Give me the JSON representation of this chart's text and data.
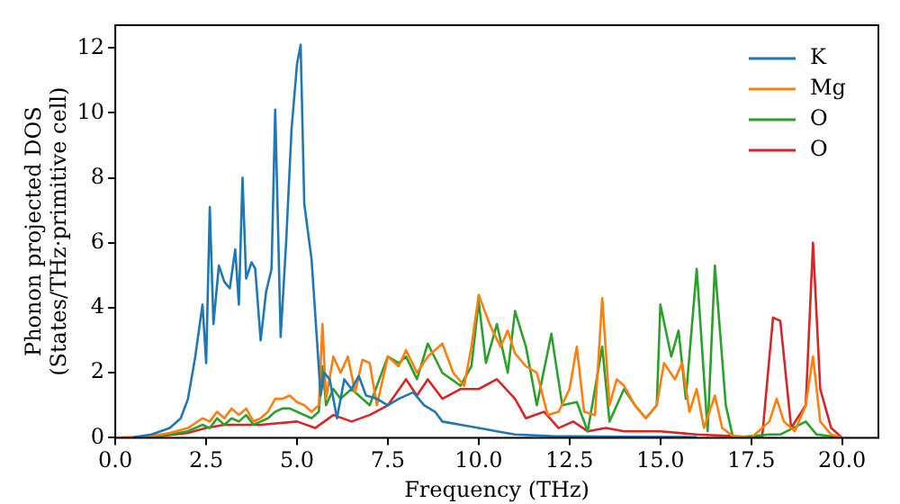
{
  "chart_data": {
    "type": "line",
    "xlabel": "Frequency (THz)",
    "ylabel": "Phonon projected DOS\n(States/THz·primitive cell)",
    "xlim": [
      0,
      21
    ],
    "ylim": [
      0,
      12.7
    ],
    "xticks": [
      {
        "value": 0,
        "label": "0.0"
      },
      {
        "value": 2.5,
        "label": "2.5"
      },
      {
        "value": 5,
        "label": "5.0"
      },
      {
        "value": 7.5,
        "label": "7.5"
      },
      {
        "value": 10,
        "label": "10.0"
      },
      {
        "value": 12.5,
        "label": "12.5"
      },
      {
        "value": 15,
        "label": "15.0"
      },
      {
        "value": 17.5,
        "label": "17.5"
      },
      {
        "value": 20,
        "label": "20.0"
      }
    ],
    "yticks": [
      0,
      2,
      4,
      6,
      8,
      10,
      12
    ],
    "grid": false,
    "legend": "top right",
    "marker": "none",
    "line_style": "solid",
    "series": [
      {
        "name": "K",
        "color": "#1f77b4",
        "x": [
          0.5,
          1,
          1.5,
          1.8,
          2,
          2.2,
          2.4,
          2.5,
          2.6,
          2.7,
          2.85,
          3,
          3.15,
          3.3,
          3.4,
          3.5,
          3.6,
          3.75,
          3.85,
          4,
          4.15,
          4.3,
          4.4,
          4.55,
          4.7,
          4.85,
          5,
          5.1,
          5.2,
          5.4,
          5.55,
          5.65,
          5.75,
          5.9,
          6,
          6.1,
          6.3,
          6.5,
          6.7,
          6.9,
          7.2,
          7.5,
          7.8,
          8.2,
          8.5,
          8.8,
          9,
          9.5,
          10,
          10.5,
          11,
          12,
          14,
          16
        ],
        "values": [
          0.02,
          0.1,
          0.3,
          0.6,
          1.2,
          2.5,
          4.1,
          2.3,
          7.1,
          3.5,
          5.3,
          4.8,
          4.6,
          5.8,
          4.1,
          8,
          4.9,
          5.4,
          5.2,
          3,
          4.5,
          5.2,
          10.1,
          3.1,
          6,
          9.5,
          11.5,
          12.1,
          7.2,
          5.5,
          3,
          1.3,
          2,
          1.8,
          1.2,
          0.6,
          1.8,
          1.5,
          1.9,
          1.3,
          1.2,
          1.0,
          1.2,
          1.4,
          1.0,
          0.8,
          0.5,
          0.4,
          0.3,
          0.2,
          0.1,
          0.05,
          0.03,
          0.02
        ]
      },
      {
        "name": "Mg",
        "color": "#ff7f0e",
        "x": [
          0,
          0.5,
          1,
          1.5,
          2,
          2.4,
          2.6,
          2.8,
          3,
          3.2,
          3.4,
          3.6,
          3.8,
          4,
          4.2,
          4.4,
          4.6,
          4.8,
          5,
          5.2,
          5.4,
          5.6,
          5.7,
          5.8,
          6,
          6.2,
          6.4,
          6.6,
          6.8,
          7,
          7.2,
          7.5,
          7.8,
          8,
          8.3,
          8.6,
          9,
          9.3,
          9.6,
          9.8,
          10,
          10.3,
          10.6,
          10.8,
          11,
          11.3,
          11.6,
          11.9,
          12.2,
          12.5,
          12.7,
          12.9,
          13.2,
          13.4,
          13.6,
          13.8,
          14,
          14.3,
          14.6,
          14.9,
          15.1,
          15.4,
          15.6,
          15.8,
          16,
          16.2,
          16.5,
          16.7,
          17,
          17.5,
          18,
          18.2,
          18.4,
          18.7,
          19,
          19.2,
          19.4,
          19.7,
          20
        ],
        "values": [
          0,
          0.02,
          0.05,
          0.15,
          0.3,
          0.6,
          0.5,
          0.8,
          0.6,
          0.9,
          0.7,
          0.9,
          0.5,
          0.6,
          0.8,
          1.2,
          1.2,
          1.3,
          1.1,
          1,
          0.8,
          1,
          3.5,
          1.2,
          2.5,
          2,
          2.5,
          1.4,
          2.4,
          2.3,
          1,
          2.5,
          2.2,
          2.7,
          2,
          2.5,
          2.9,
          2,
          1.6,
          2.8,
          4.4,
          3.5,
          2.8,
          3.3,
          2.6,
          2.2,
          2,
          0.7,
          0.8,
          1.5,
          2.8,
          0.8,
          0.7,
          4.3,
          1,
          1.8,
          1.6,
          1,
          0.6,
          1,
          2.3,
          1.8,
          2.3,
          0.8,
          1.5,
          0.3,
          1.3,
          0.3,
          0.05,
          0,
          0.5,
          1.2,
          0.5,
          0.2,
          1,
          2.5,
          0.5,
          0.1,
          0
        ]
      },
      {
        "name": "O",
        "color": "#2ca02c",
        "x": [
          0,
          0.5,
          1,
          1.5,
          2,
          2.4,
          2.6,
          2.8,
          3,
          3.2,
          3.4,
          3.6,
          3.8,
          4,
          4.2,
          4.4,
          4.6,
          4.8,
          5,
          5.2,
          5.4,
          5.6,
          5.7,
          5.8,
          6,
          6.2,
          6.5,
          7,
          7.5,
          7.8,
          8,
          8.3,
          8.6,
          9,
          9.5,
          9.8,
          10,
          10.2,
          10.5,
          10.8,
          11,
          11.3,
          11.6,
          12,
          12.3,
          12.7,
          13,
          13.4,
          13.6,
          14,
          14.3,
          14.6,
          14.9,
          15,
          15.3,
          15.5,
          15.7,
          16,
          16.3,
          16.5,
          16.8,
          17,
          18,
          18.3,
          19,
          19.3,
          20
        ],
        "values": [
          0,
          0.01,
          0.04,
          0.1,
          0.2,
          0.4,
          0.3,
          0.6,
          0.4,
          0.6,
          0.5,
          0.7,
          0.4,
          0.5,
          0.6,
          0.8,
          0.9,
          0.9,
          0.8,
          0.7,
          0.6,
          0.8,
          2.2,
          1,
          1.5,
          1.2,
          1.5,
          1,
          2.5,
          2.3,
          2.5,
          1.8,
          2.9,
          2,
          1.6,
          2.2,
          4.2,
          2.3,
          3.5,
          2,
          3.9,
          2.8,
          1,
          3.2,
          1,
          1.1,
          0.2,
          2.8,
          0.5,
          1.5,
          1,
          0.6,
          1,
          4.1,
          2.5,
          3.3,
          1.2,
          5.2,
          0.2,
          5.3,
          1,
          0,
          0.1,
          0.1,
          0.5,
          0.1,
          0
        ]
      },
      {
        "name": "O",
        "color": "#d62728",
        "x": [
          0,
          1,
          2,
          2.5,
          3,
          4,
          5,
          5.5,
          6,
          6.5,
          7,
          7.5,
          8,
          8.3,
          8.6,
          9,
          9.5,
          10,
          10.5,
          11,
          11.3,
          11.8,
          12.2,
          12.6,
          13,
          13.5,
          14,
          15,
          16,
          17,
          17.8,
          18.1,
          18.3,
          18.6,
          19,
          19.2,
          19.4,
          19.7,
          20
        ],
        "values": [
          0,
          0.02,
          0.15,
          0.3,
          0.4,
          0.4,
          0.5,
          0.3,
          0.7,
          0.5,
          0.7,
          1,
          1.8,
          1.3,
          1.8,
          1.2,
          1.5,
          1.5,
          1.8,
          1.2,
          0.6,
          0.8,
          0.3,
          0.5,
          0.2,
          0.3,
          0.2,
          0.2,
          0.1,
          0.05,
          0,
          3.7,
          3.6,
          0.3,
          1,
          6,
          1.5,
          0.3,
          0
        ]
      }
    ]
  }
}
